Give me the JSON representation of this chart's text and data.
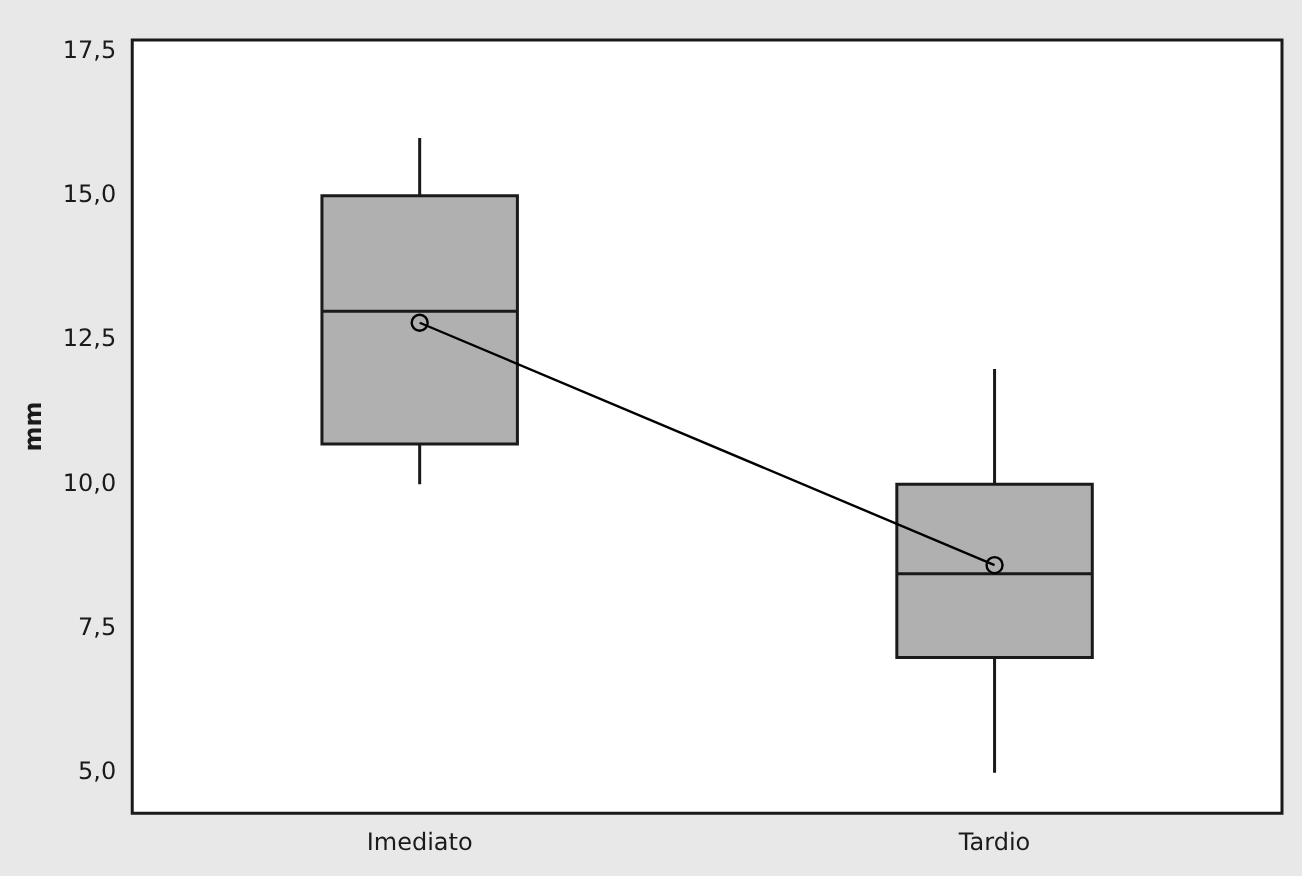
{
  "chart_data": {
    "type": "box",
    "categories": [
      "Imediato",
      "Tardio"
    ],
    "ylabel": "mm",
    "ylim": [
      4.3,
      17.7
    ],
    "yticks": [
      {
        "value": 5,
        "label": "5,0"
      },
      {
        "value": 7.5,
        "label": "7,5"
      },
      {
        "value": 10,
        "label": "10,0"
      },
      {
        "value": 12.5,
        "label": "12,5"
      },
      {
        "value": 15,
        "label": "15,0"
      },
      {
        "value": 17.5,
        "label": "17,5"
      }
    ],
    "grid": false,
    "legend": false,
    "series": [
      {
        "type": "box",
        "color": "#b0b0b0",
        "boxes": [
          {
            "low": 10.0,
            "q1": 10.7,
            "median": 13.0,
            "q3": 15.0,
            "high": 16.0
          },
          {
            "low": 5.0,
            "q1": 7.0,
            "median": 8.45,
            "q3": 10.0,
            "high": 12.0
          }
        ]
      },
      {
        "type": "line",
        "color": "#000000",
        "values": [
          12.8,
          8.6
        ],
        "marker": "circle"
      }
    ]
  }
}
